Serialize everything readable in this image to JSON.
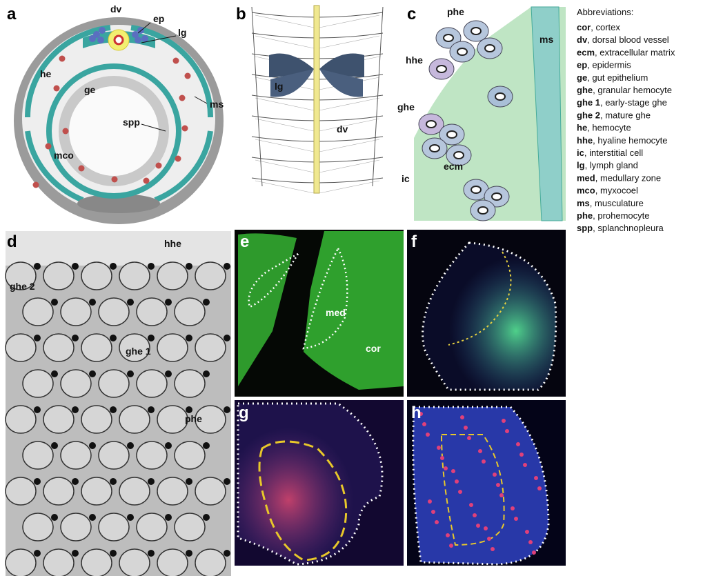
{
  "panels": {
    "a": {
      "label": "a",
      "annotations": [
        "dv",
        "ep",
        "lg",
        "he",
        "ge",
        "spp",
        "ms",
        "mco"
      ]
    },
    "b": {
      "label": "b",
      "annotations": [
        "lg",
        "dv"
      ]
    },
    "c": {
      "label": "c",
      "annotations": [
        "phe",
        "hhe",
        "ms",
        "ghe",
        "ecm",
        "ic"
      ]
    },
    "d": {
      "label": "d",
      "annotations": [
        "hhe",
        "ghe 2",
        "ghe 1",
        "phe"
      ]
    },
    "e": {
      "label": "e",
      "annotations": [
        "med",
        "cor"
      ]
    },
    "f": {
      "label": "f"
    },
    "g": {
      "label": "g"
    },
    "h": {
      "label": "h"
    }
  },
  "abbreviations": {
    "title": "Abbreviations:",
    "entries": [
      {
        "term": "cor",
        "definition": ", cortex"
      },
      {
        "term": "dv",
        "definition": ", dorsal blood vessel"
      },
      {
        "term": "ecm",
        "definition": ", extracellular matrix"
      },
      {
        "term": "ep",
        "definition": ", epidermis"
      },
      {
        "term": "ge",
        "definition": ", gut epithelium"
      },
      {
        "term": "ghe",
        "definition": ", granular hemocyte"
      },
      {
        "term": "ghe 1",
        "definition": ", early-stage ghe"
      },
      {
        "term": "ghe 2",
        "definition": ", mature ghe"
      },
      {
        "term": "he",
        "definition": ", hemocyte"
      },
      {
        "term": "hhe",
        "definition": ", hyaline hemocyte"
      },
      {
        "term": "ic",
        "definition": ", interstitial cell"
      },
      {
        "term": "lg",
        "definition": ", lymph gland"
      },
      {
        "term": "med",
        "definition": ", medullary zone"
      },
      {
        "term": "mco",
        "definition": ", myxocoel"
      },
      {
        "term": "ms",
        "definition": ", musculature"
      },
      {
        "term": "phe",
        "definition": ", prohemocyte"
      },
      {
        "term": "spp",
        "definition": ", splanchnopleura"
      }
    ]
  }
}
